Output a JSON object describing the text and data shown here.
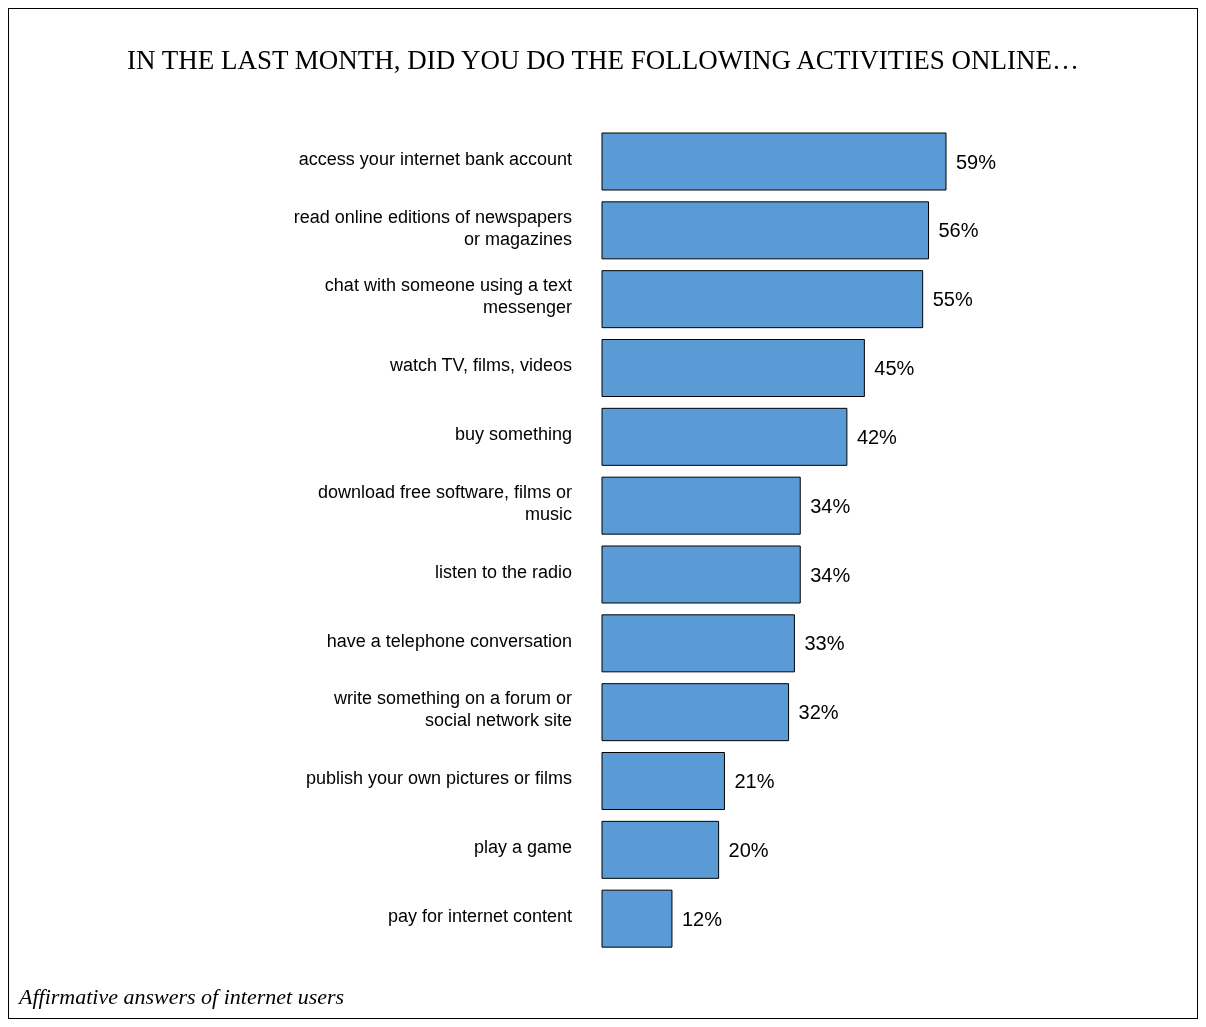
{
  "chart_data": {
    "type": "bar",
    "orientation": "horizontal",
    "title": "IN THE LAST MONTH, DID YOU DO THE FOLLOWING ACTIVITIES ONLINE…",
    "categories": [
      "access your internet bank account",
      "read online editions of newspapers or magazines",
      "chat with someone using a text messenger",
      "watch TV, films, videos",
      "buy something",
      "download free software, films or music",
      "listen to the radio",
      "have a telephone conversation",
      "write something on a forum or social network site",
      "publish your own pictures or films",
      "play a game",
      "pay for internet content"
    ],
    "values": [
      59,
      56,
      55,
      45,
      42,
      34,
      34,
      33,
      32,
      21,
      20,
      12
    ],
    "value_labels": [
      "59%",
      "56%",
      "55%",
      "45%",
      "42%",
      "34%",
      "34%",
      "33%",
      "32%",
      "21%",
      "20%",
      "12%"
    ],
    "color": "#5b9bd5",
    "annotations": [
      "Affirmative answers of internet users"
    ]
  }
}
